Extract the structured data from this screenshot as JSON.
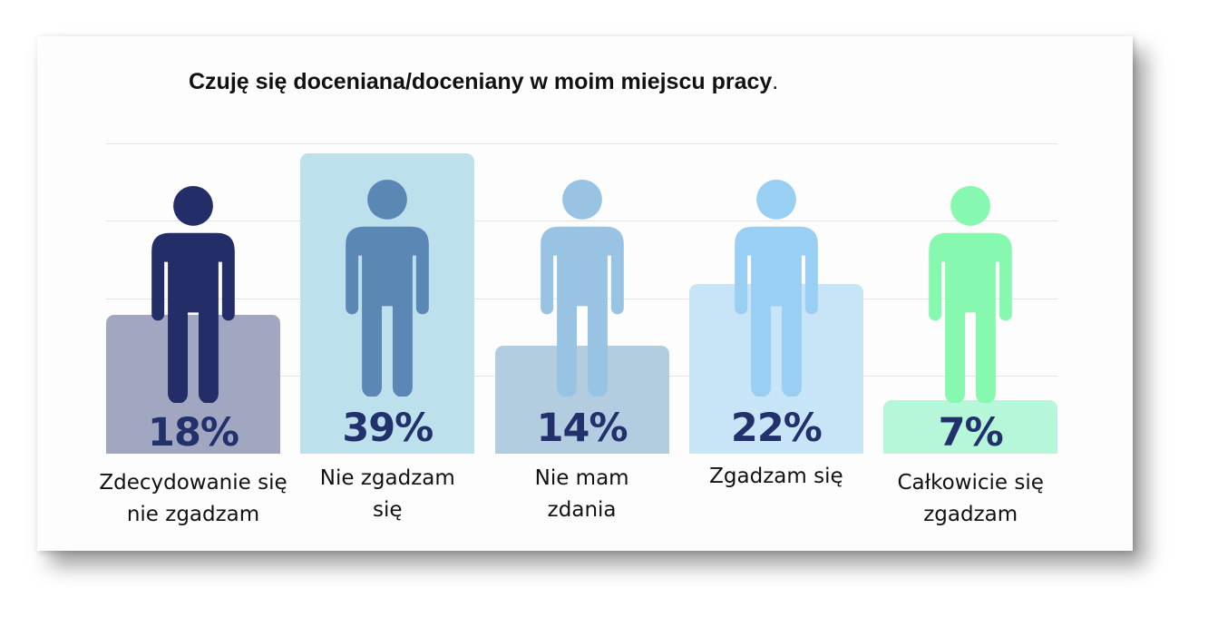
{
  "title": "Czuję się doceniana/doceniany w moim miejscu pracy",
  "title_punct": ".",
  "chart_data": {
    "type": "bar",
    "title": "Czuję się doceniana/doceniany w moim miejscu pracy.",
    "categories": [
      "Zdecydowanie się nie zgadzam",
      "Nie zgadzam się",
      "Nie mam zdania",
      "Zgadzam się",
      "Całkowicie się zgadzam"
    ],
    "values": [
      18,
      39,
      14,
      22,
      7
    ],
    "unit": "%",
    "ylim": [
      0,
      40
    ],
    "grid": true
  },
  "items": [
    {
      "value_label": "18%",
      "label_lines": [
        "Zdecydowanie się",
        "nie zgadzam"
      ],
      "bar_color": "#a1a6c1",
      "figure_color": "#232d68"
    },
    {
      "value_label": "39%",
      "label_lines": [
        "Nie zgadzam",
        "się"
      ],
      "bar_color": "#bce0ec",
      "figure_color": "#5b87b5"
    },
    {
      "value_label": "14%",
      "label_lines": [
        "Nie mam",
        "zdania"
      ],
      "bar_color": "#b2cde0",
      "figure_color": "#99c3e3"
    },
    {
      "value_label": "22%",
      "label_lines": [
        "Zgadzam się"
      ],
      "bar_color": "#c8e5f7",
      "figure_color": "#99cff3"
    },
    {
      "value_label": "7%",
      "label_lines": [
        "Całkowicie się",
        "zgadzam"
      ],
      "bar_color": "#b6f7da",
      "figure_color": "#86f8af"
    }
  ]
}
